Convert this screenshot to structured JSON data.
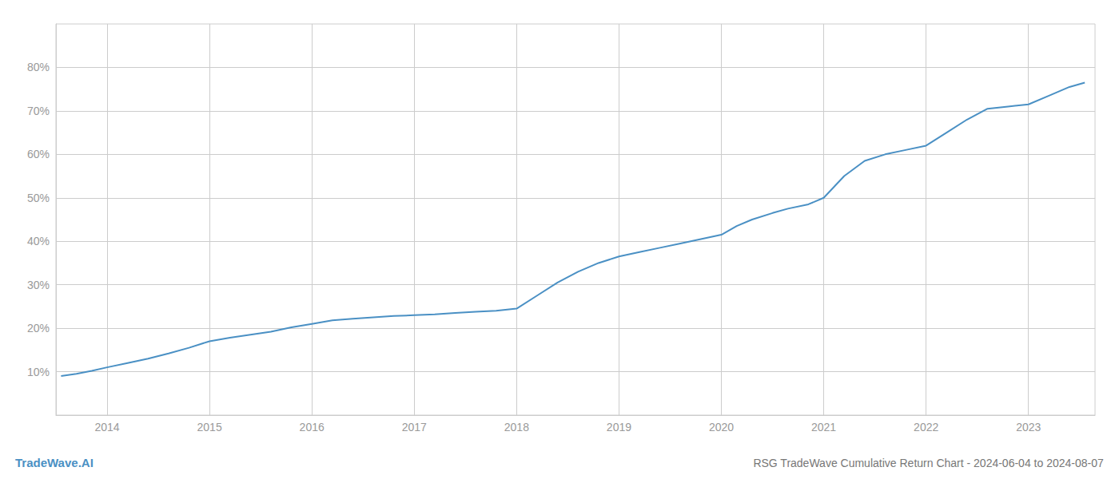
{
  "chart_data": {
    "type": "line",
    "title": "RSG TradeWave Cumulative Return Chart - 2024-06-04 to 2024-08-07",
    "annotations": [
      "TradeWave.AI"
    ],
    "color": "#4a90c4",
    "grid": true,
    "x": [
      2013.55,
      2013.7,
      2013.85,
      2014.0,
      2014.2,
      2014.4,
      2014.6,
      2014.8,
      2015.0,
      2015.2,
      2015.4,
      2015.6,
      2015.8,
      2016.0,
      2016.2,
      2016.4,
      2016.6,
      2016.8,
      2017.0,
      2017.2,
      2017.4,
      2017.6,
      2017.8,
      2018.0,
      2018.2,
      2018.4,
      2018.6,
      2018.8,
      2019.0,
      2019.2,
      2019.4,
      2019.6,
      2019.8,
      2020.0,
      2020.15,
      2020.3,
      2020.5,
      2020.65,
      2020.85,
      2021.0,
      2021.2,
      2021.4,
      2021.6,
      2021.8,
      2022.0,
      2022.2,
      2022.4,
      2022.6,
      2022.8,
      2023.0,
      2023.2,
      2023.4,
      2023.55
    ],
    "values": [
      9.0,
      9.5,
      10.2,
      11.0,
      12.0,
      13.0,
      14.2,
      15.5,
      17.0,
      17.8,
      18.5,
      19.2,
      20.2,
      21.0,
      21.8,
      22.2,
      22.5,
      22.8,
      23.0,
      23.2,
      23.5,
      23.8,
      24.0,
      24.5,
      27.5,
      30.5,
      33.0,
      35.0,
      36.5,
      37.5,
      38.5,
      39.5,
      40.5,
      41.5,
      43.5,
      45.0,
      46.5,
      47.5,
      48.5,
      50.0,
      55.0,
      58.5,
      60.0,
      61.0,
      62.0,
      65.0,
      68.0,
      70.5,
      71.0,
      71.5,
      73.5,
      75.5,
      76.5
    ],
    "xlim": [
      2013.5,
      2023.65
    ],
    "xticks": [
      2014,
      2015,
      2016,
      2017,
      2018,
      2019,
      2020,
      2021,
      2022,
      2023
    ],
    "ylim": [
      0,
      90
    ],
    "yticks": [
      {
        "value": 10,
        "label": "10%"
      },
      {
        "value": 20,
        "label": "20%"
      },
      {
        "value": 30,
        "label": "30%"
      },
      {
        "value": 40,
        "label": "40%"
      },
      {
        "value": 50,
        "label": "50%"
      },
      {
        "value": 60,
        "label": "60%"
      },
      {
        "value": 70,
        "label": "70%"
      },
      {
        "value": 80,
        "label": "80%"
      }
    ]
  }
}
